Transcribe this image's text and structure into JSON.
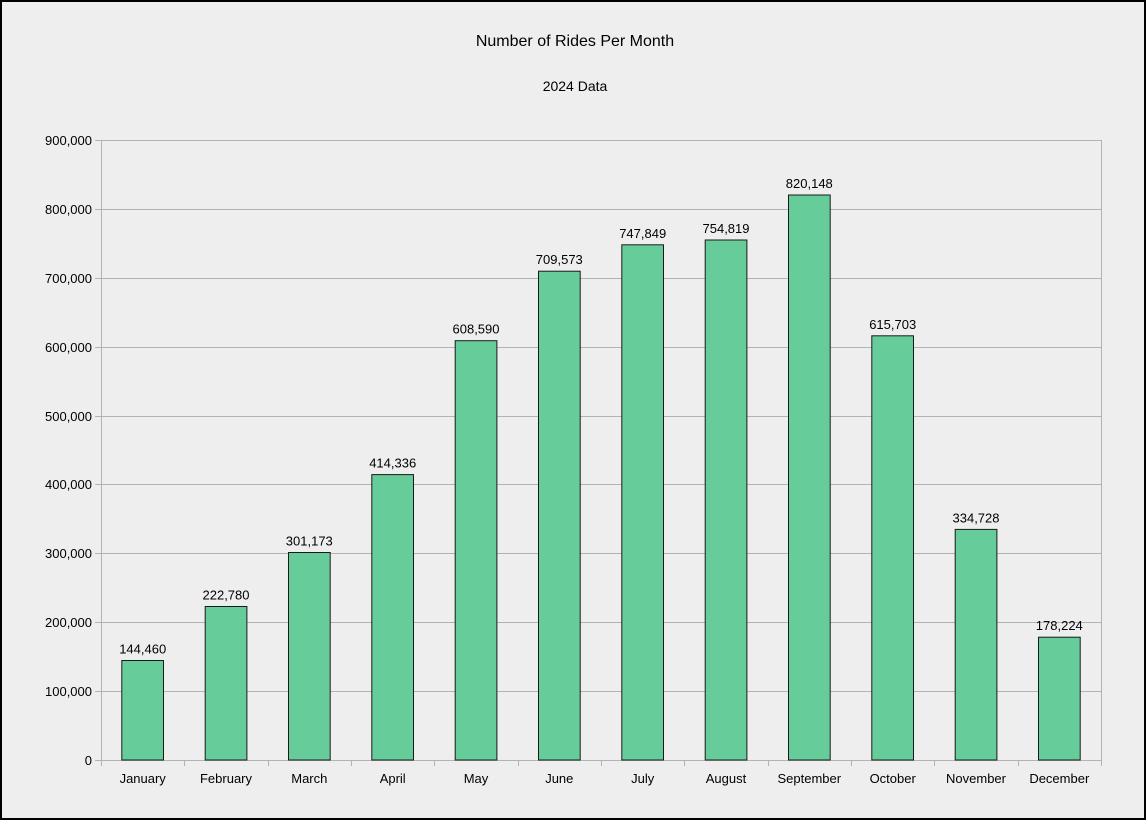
{
  "chart_data": {
    "type": "bar",
    "title": "Number of Rides Per Month",
    "subtitle": "2024 Data",
    "xlabel": "",
    "ylabel": "",
    "categories": [
      "January",
      "February",
      "March",
      "April",
      "May",
      "June",
      "July",
      "August",
      "September",
      "October",
      "November",
      "December"
    ],
    "series": [
      {
        "values": [
          144460,
          222780,
          301173,
          414336,
          608590,
          709573,
          747849,
          754819,
          820148,
          615703,
          334728,
          178224
        ],
        "labels": [
          "144,460",
          "222,780",
          "301,173",
          "414,336",
          "608,590",
          "709,573",
          "747,849",
          "754,819",
          "820,148",
          "615,703",
          "334,728",
          "178,224"
        ],
        "color": "#66cc99"
      }
    ],
    "ylim": [
      0,
      900000
    ],
    "yticks": [
      0,
      100000,
      200000,
      300000,
      400000,
      500000,
      600000,
      700000,
      800000,
      900000
    ],
    "ytick_labels": [
      "0",
      "100,000",
      "200,000",
      "300,000",
      "400,000",
      "500,000",
      "600,000",
      "700,000",
      "800,000",
      "900,000"
    ],
    "grid": true,
    "legend": "none",
    "colors": {
      "bar_fill": "#66cc99",
      "bar_stroke": "#1a1a1a",
      "grid": "#b3b3b3",
      "background": "#eeeeee"
    }
  }
}
